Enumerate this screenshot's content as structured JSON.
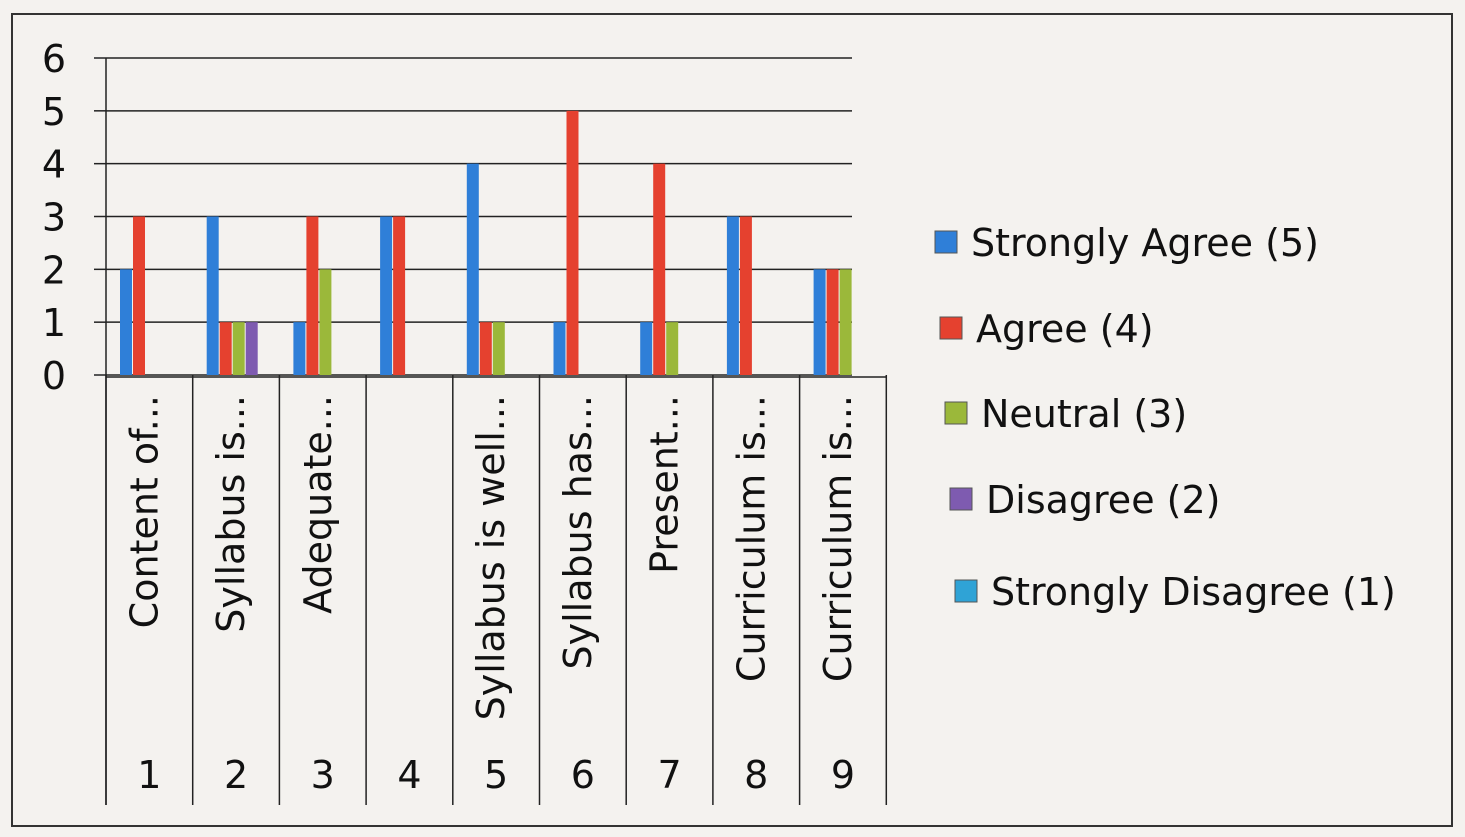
{
  "chart_data": {
    "type": "bar",
    "ylim": [
      0,
      6
    ],
    "yticks": [
      "0",
      "1",
      "2",
      "3",
      "4",
      "5",
      "6"
    ],
    "grid": true,
    "legend_position": "right",
    "categories": [
      {
        "number": "1",
        "label": "Content of..."
      },
      {
        "number": "2",
        "label": "Syllabus is..."
      },
      {
        "number": "3",
        "label": "Adequate..."
      },
      {
        "number": "4",
        "label": ""
      },
      {
        "number": "5",
        "label": "Syllabus is well..."
      },
      {
        "number": "6",
        "label": "Syllabus has..."
      },
      {
        "number": "7",
        "label": "Present..."
      },
      {
        "number": "8",
        "label": "Curriculum is..."
      },
      {
        "number": "9",
        "label": "Curriculum is..."
      }
    ],
    "series": [
      {
        "name": "Strongly Agree (5)",
        "color": "#2f7fd8",
        "values": [
          2,
          3,
          1,
          3,
          4,
          1,
          1,
          3,
          2
        ]
      },
      {
        "name": "Agree (4)",
        "color": "#e5412f",
        "values": [
          3,
          1,
          3,
          3,
          1,
          5,
          4,
          3,
          2
        ]
      },
      {
        "name": "Neutral (3)",
        "color": "#9bb83a",
        "values": [
          0,
          1,
          2,
          0,
          1,
          0,
          1,
          0,
          2
        ]
      },
      {
        "name": "Disagree (2)",
        "color": "#7e5bb0",
        "values": [
          0,
          1,
          0,
          0,
          0,
          0,
          0,
          0,
          0
        ]
      },
      {
        "name": "Strongly Disagree (1)",
        "color": "#2fa3d6",
        "values": [
          0,
          0,
          0,
          0,
          0,
          0,
          0,
          0,
          0
        ]
      }
    ]
  }
}
